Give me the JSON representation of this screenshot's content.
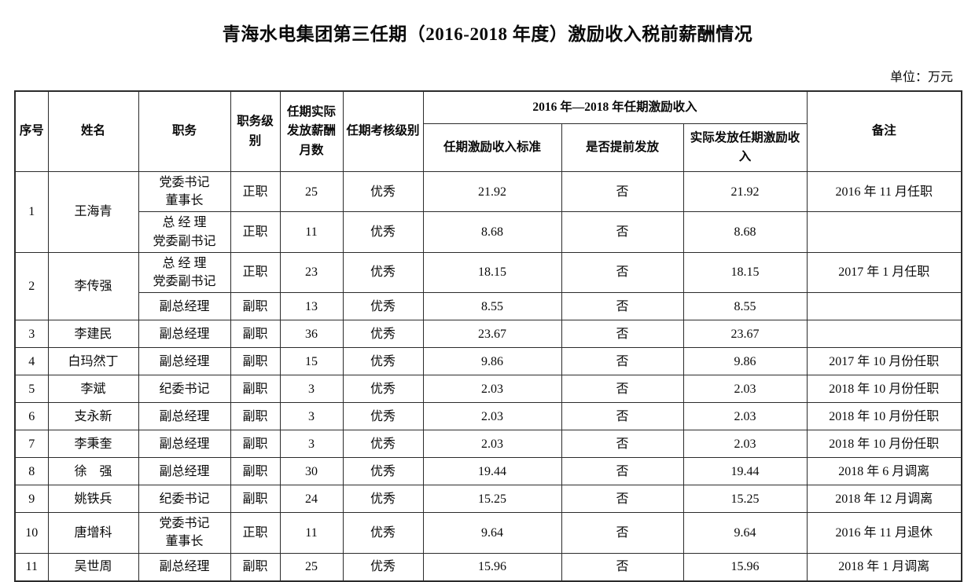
{
  "page": {
    "title": "青海水电集团第三任期（2016-2018 年度）激励收入税前薪酬情况",
    "unit_label": "单位：万元"
  },
  "table": {
    "header": {
      "xuhao": "序号",
      "xingming": "姓名",
      "zhiwu": "职务",
      "jibie": "职务级别",
      "yueshu": "任期实际发放薪酬月数",
      "kaohe": "任期考核级别",
      "group": "2016 年—2018 年任期激励收入",
      "biaozhun": "任期激励收入标准",
      "tiqian": "是否提前发放",
      "shiji": "实际发放任期激励收入",
      "beizhu": "备注"
    },
    "rows": [
      {
        "cells": [
          {
            "c": "xuhao",
            "t": "1",
            "rs": 2
          },
          {
            "c": "xingming",
            "t": "王海青",
            "rs": 2
          },
          {
            "c": "zhiwu",
            "lines": [
              "党委书记",
              "董事长"
            ]
          },
          {
            "c": "jibie",
            "t": "正职"
          },
          {
            "c": "yueshu",
            "t": "25"
          },
          {
            "c": "kaohe",
            "t": "优秀"
          },
          {
            "c": "biaozhun",
            "t": "21.92"
          },
          {
            "c": "tiqian",
            "t": "否"
          },
          {
            "c": "shiji",
            "t": "21.92"
          },
          {
            "c": "beizhu",
            "t": "2016 年 11 月任职"
          }
        ]
      },
      {
        "cells": [
          {
            "c": "zhiwu",
            "lines": [
              "总 经 理",
              "党委副书记"
            ]
          },
          {
            "c": "jibie",
            "t": "正职"
          },
          {
            "c": "yueshu",
            "t": "11"
          },
          {
            "c": "kaohe",
            "t": "优秀"
          },
          {
            "c": "biaozhun",
            "t": "8.68"
          },
          {
            "c": "tiqian",
            "t": "否"
          },
          {
            "c": "shiji",
            "t": "8.68"
          },
          {
            "c": "beizhu",
            "t": ""
          }
        ]
      },
      {
        "cells": [
          {
            "c": "xuhao",
            "t": "2",
            "rs": 2
          },
          {
            "c": "xingming",
            "t": "李传强",
            "rs": 2
          },
          {
            "c": "zhiwu",
            "lines": [
              "总 经 理",
              "党委副书记"
            ]
          },
          {
            "c": "jibie",
            "t": "正职"
          },
          {
            "c": "yueshu",
            "t": "23"
          },
          {
            "c": "kaohe",
            "t": "优秀"
          },
          {
            "c": "biaozhun",
            "t": "18.15"
          },
          {
            "c": "tiqian",
            "t": "否"
          },
          {
            "c": "shiji",
            "t": "18.15"
          },
          {
            "c": "beizhu",
            "t": "2017 年 1 月任职"
          }
        ]
      },
      {
        "cells": [
          {
            "c": "zhiwu",
            "t": "副总经理"
          },
          {
            "c": "jibie",
            "t": "副职"
          },
          {
            "c": "yueshu",
            "t": "13"
          },
          {
            "c": "kaohe",
            "t": "优秀"
          },
          {
            "c": "biaozhun",
            "t": "8.55"
          },
          {
            "c": "tiqian",
            "t": "否"
          },
          {
            "c": "shiji",
            "t": "8.55"
          },
          {
            "c": "beizhu",
            "t": ""
          }
        ]
      },
      {
        "cells": [
          {
            "c": "xuhao",
            "t": "3"
          },
          {
            "c": "xingming",
            "t": "李建民"
          },
          {
            "c": "zhiwu",
            "t": "副总经理"
          },
          {
            "c": "jibie",
            "t": "副职"
          },
          {
            "c": "yueshu",
            "t": "36"
          },
          {
            "c": "kaohe",
            "t": "优秀"
          },
          {
            "c": "biaozhun",
            "t": "23.67"
          },
          {
            "c": "tiqian",
            "t": "否"
          },
          {
            "c": "shiji",
            "t": "23.67"
          },
          {
            "c": "beizhu",
            "t": ""
          }
        ]
      },
      {
        "cells": [
          {
            "c": "xuhao",
            "t": "4"
          },
          {
            "c": "xingming",
            "t": "白玛然丁"
          },
          {
            "c": "zhiwu",
            "t": "副总经理"
          },
          {
            "c": "jibie",
            "t": "副职"
          },
          {
            "c": "yueshu",
            "t": "15"
          },
          {
            "c": "kaohe",
            "t": "优秀"
          },
          {
            "c": "biaozhun",
            "t": "9.86"
          },
          {
            "c": "tiqian",
            "t": "否"
          },
          {
            "c": "shiji",
            "t": "9.86"
          },
          {
            "c": "beizhu",
            "t": "2017 年 10 月份任职"
          }
        ]
      },
      {
        "cells": [
          {
            "c": "xuhao",
            "t": "5"
          },
          {
            "c": "xingming",
            "t": "李斌"
          },
          {
            "c": "zhiwu",
            "t": "纪委书记"
          },
          {
            "c": "jibie",
            "t": "副职"
          },
          {
            "c": "yueshu",
            "t": "3"
          },
          {
            "c": "kaohe",
            "t": "优秀"
          },
          {
            "c": "biaozhun",
            "t": "2.03"
          },
          {
            "c": "tiqian",
            "t": "否"
          },
          {
            "c": "shiji",
            "t": "2.03"
          },
          {
            "c": "beizhu",
            "t": "2018 年 10 月份任职"
          }
        ]
      },
      {
        "cells": [
          {
            "c": "xuhao",
            "t": "6"
          },
          {
            "c": "xingming",
            "t": "支永新"
          },
          {
            "c": "zhiwu",
            "t": "副总经理"
          },
          {
            "c": "jibie",
            "t": "副职"
          },
          {
            "c": "yueshu",
            "t": "3"
          },
          {
            "c": "kaohe",
            "t": "优秀"
          },
          {
            "c": "biaozhun",
            "t": "2.03"
          },
          {
            "c": "tiqian",
            "t": "否"
          },
          {
            "c": "shiji",
            "t": "2.03"
          },
          {
            "c": "beizhu",
            "t": "2018 年 10 月份任职"
          }
        ]
      },
      {
        "cells": [
          {
            "c": "xuhao",
            "t": "7"
          },
          {
            "c": "xingming",
            "t": "李秉奎"
          },
          {
            "c": "zhiwu",
            "t": "副总经理"
          },
          {
            "c": "jibie",
            "t": "副职"
          },
          {
            "c": "yueshu",
            "t": "3"
          },
          {
            "c": "kaohe",
            "t": "优秀"
          },
          {
            "c": "biaozhun",
            "t": "2.03"
          },
          {
            "c": "tiqian",
            "t": "否"
          },
          {
            "c": "shiji",
            "t": "2.03"
          },
          {
            "c": "beizhu",
            "t": "2018 年 10 月份任职"
          }
        ]
      },
      {
        "cells": [
          {
            "c": "xuhao",
            "t": "8"
          },
          {
            "c": "xingming",
            "t": "徐　强"
          },
          {
            "c": "zhiwu",
            "t": "副总经理"
          },
          {
            "c": "jibie",
            "t": "副职"
          },
          {
            "c": "yueshu",
            "t": "30"
          },
          {
            "c": "kaohe",
            "t": "优秀"
          },
          {
            "c": "biaozhun",
            "t": "19.44"
          },
          {
            "c": "tiqian",
            "t": "否"
          },
          {
            "c": "shiji",
            "t": "19.44"
          },
          {
            "c": "beizhu",
            "t": "2018 年 6 月调离"
          }
        ]
      },
      {
        "cells": [
          {
            "c": "xuhao",
            "t": "9"
          },
          {
            "c": "xingming",
            "t": "姚铁兵"
          },
          {
            "c": "zhiwu",
            "t": "纪委书记"
          },
          {
            "c": "jibie",
            "t": "副职"
          },
          {
            "c": "yueshu",
            "t": "24"
          },
          {
            "c": "kaohe",
            "t": "优秀"
          },
          {
            "c": "biaozhun",
            "t": "15.25"
          },
          {
            "c": "tiqian",
            "t": "否"
          },
          {
            "c": "shiji",
            "t": "15.25"
          },
          {
            "c": "beizhu",
            "t": "2018 年 12 月调离"
          }
        ]
      },
      {
        "cells": [
          {
            "c": "xuhao",
            "t": "10"
          },
          {
            "c": "xingming",
            "t": "唐增科"
          },
          {
            "c": "zhiwu",
            "lines": [
              "党委书记",
              "董事长"
            ]
          },
          {
            "c": "jibie",
            "t": "正职"
          },
          {
            "c": "yueshu",
            "t": "11"
          },
          {
            "c": "kaohe",
            "t": "优秀"
          },
          {
            "c": "biaozhun",
            "t": "9.64"
          },
          {
            "c": "tiqian",
            "t": "否"
          },
          {
            "c": "shiji",
            "t": "9.64"
          },
          {
            "c": "beizhu",
            "t": "2016 年 11 月退休"
          }
        ]
      },
      {
        "cells": [
          {
            "c": "xuhao",
            "t": "11"
          },
          {
            "c": "xingming",
            "t": "吴世周"
          },
          {
            "c": "zhiwu",
            "t": "副总经理"
          },
          {
            "c": "jibie",
            "t": "副职"
          },
          {
            "c": "yueshu",
            "t": "25"
          },
          {
            "c": "kaohe",
            "t": "优秀"
          },
          {
            "c": "biaozhun",
            "t": "15.96"
          },
          {
            "c": "tiqian",
            "t": "否"
          },
          {
            "c": "shiji",
            "t": "15.96"
          },
          {
            "c": "beizhu",
            "t": "2018 年 1 月调离"
          }
        ]
      }
    ]
  }
}
